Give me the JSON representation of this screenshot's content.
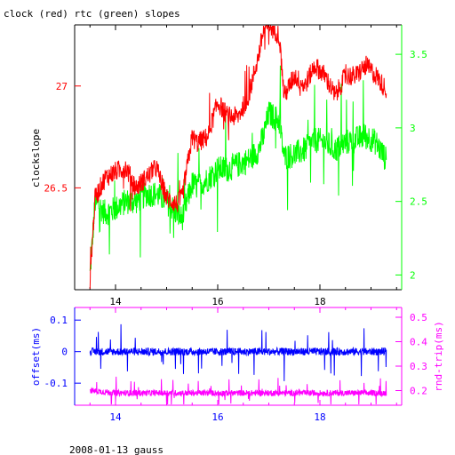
{
  "title": "clock (red) rtc (green) slopes",
  "footer": "2008-01-13 gauss",
  "colors": {
    "clock": "#ff0000",
    "rtc": "#00ff00",
    "offset": "#0000ff",
    "rndtrip": "#ff00ff",
    "axis_black": "#000000"
  },
  "chart_data": [
    {
      "type": "line",
      "xlim": [
        13.2,
        19.6
      ],
      "x_ticks": [
        "14",
        "16",
        "18"
      ],
      "left_axis": {
        "label": "clockslope",
        "ylim": [
          26.0,
          27.3
        ],
        "ticks": [
          "26.5",
          "27"
        ],
        "color": "#ff0000"
      },
      "right_axis": {
        "label": "",
        "ylim": [
          1.9,
          3.7
        ],
        "ticks": [
          "2",
          "2.5",
          "3",
          "3.5"
        ],
        "color": "#00ff00"
      },
      "series": [
        {
          "name": "clock",
          "axis": "left",
          "x": [
            13.5,
            13.6,
            13.8,
            14.0,
            14.2,
            14.4,
            14.6,
            14.8,
            15.0,
            15.2,
            15.3,
            15.5,
            15.6,
            15.8,
            16.0,
            16.2,
            16.4,
            16.6,
            16.8,
            16.9,
            17.0,
            17.2,
            17.3,
            17.5,
            17.7,
            17.9,
            18.1,
            18.3,
            18.5,
            18.7,
            18.9,
            19.1,
            19.3
          ],
          "y": [
            26.05,
            26.45,
            26.55,
            26.58,
            26.6,
            26.5,
            26.55,
            26.6,
            26.45,
            26.42,
            26.45,
            26.75,
            26.72,
            26.75,
            26.92,
            26.85,
            26.85,
            26.95,
            27.15,
            27.28,
            27.3,
            27.25,
            26.95,
            27.05,
            27.0,
            27.1,
            27.05,
            26.95,
            27.05,
            27.05,
            27.1,
            27.05,
            26.98
          ]
        },
        {
          "name": "rtc",
          "axis": "right",
          "x": [
            13.5,
            13.6,
            13.8,
            14.0,
            14.2,
            14.4,
            14.6,
            14.8,
            15.0,
            15.2,
            15.3,
            15.5,
            15.6,
            15.8,
            16.0,
            16.2,
            16.4,
            16.6,
            16.8,
            16.9,
            17.0,
            17.2,
            17.3,
            17.5,
            17.7,
            17.9,
            18.1,
            18.3,
            18.5,
            18.7,
            18.9,
            19.1,
            19.3
          ],
          "y": [
            2.0,
            2.5,
            2.42,
            2.45,
            2.5,
            2.5,
            2.55,
            2.55,
            2.5,
            2.42,
            2.38,
            2.62,
            2.6,
            2.65,
            2.72,
            2.72,
            2.75,
            2.78,
            2.85,
            2.95,
            3.1,
            3.05,
            2.8,
            2.82,
            2.85,
            2.92,
            2.9,
            2.85,
            2.9,
            2.92,
            2.95,
            2.9,
            2.78
          ]
        }
      ]
    },
    {
      "type": "line",
      "xlim": [
        13.2,
        19.6
      ],
      "x_ticks": [
        "14",
        "16",
        "18"
      ],
      "left_axis": {
        "label": "offset(ms)",
        "ylim": [
          -0.17,
          0.14
        ],
        "ticks": [
          "0.1",
          "0",
          "-0.1"
        ],
        "color": "#0000ff"
      },
      "right_axis": {
        "label": "rnd-trip(ms)",
        "ylim": [
          0.14,
          0.54
        ],
        "ticks": [
          "0.5",
          "0.4",
          "0.3",
          "0.2"
        ],
        "color": "#ff00ff"
      },
      "series": [
        {
          "name": "offset",
          "axis": "left",
          "x": [
            13.5,
            14.0,
            14.5,
            15.0,
            15.5,
            16.0,
            16.5,
            17.0,
            17.5,
            18.0,
            18.5,
            19.0,
            19.3
          ],
          "y": [
            0.0,
            0.0,
            0.0,
            0.0,
            0.0,
            0.0,
            0.0,
            0.0,
            0.0,
            0.0,
            0.0,
            0.0,
            0.0
          ]
        },
        {
          "name": "rnd-trip",
          "axis": "right",
          "x": [
            13.5,
            14.0,
            14.5,
            15.0,
            15.5,
            16.0,
            16.5,
            17.0,
            17.5,
            18.0,
            18.5,
            19.0,
            19.3
          ],
          "y": [
            0.2,
            0.19,
            0.19,
            0.19,
            0.19,
            0.19,
            0.19,
            0.19,
            0.19,
            0.19,
            0.19,
            0.19,
            0.19
          ]
        }
      ]
    }
  ]
}
